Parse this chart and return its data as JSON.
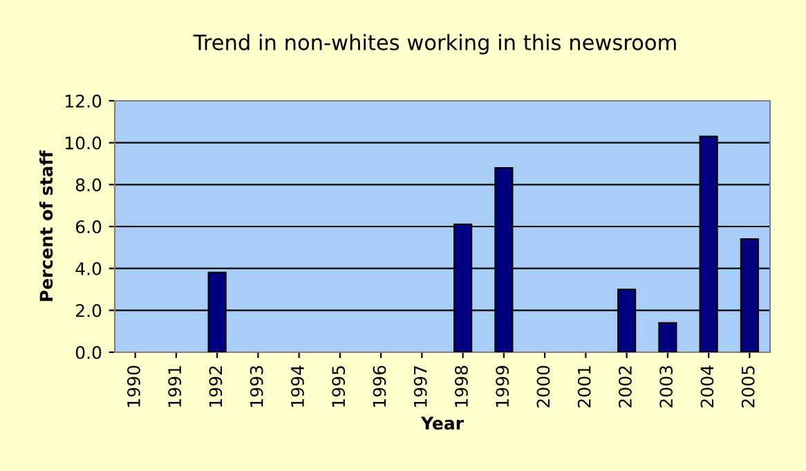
{
  "chart_data": {
    "type": "bar",
    "title": "Trend in non-whites working in this newsroom",
    "xlabel": "Year",
    "ylabel": "Percent of staff",
    "categories": [
      "1990",
      "1991",
      "1992",
      "1993",
      "1994",
      "1995",
      "1996",
      "1997",
      "1998",
      "1999",
      "2000",
      "2001",
      "2002",
      "2003",
      "2004",
      "2005"
    ],
    "series": [
      {
        "color": "#000080",
        "values": [
          null,
          null,
          3.8,
          null,
          null,
          null,
          null,
          null,
          6.1,
          8.8,
          null,
          null,
          3.0,
          1.4,
          10.3,
          5.4
        ]
      }
    ],
    "ylim": [
      0,
      12
    ],
    "yticks": [
      {
        "value": 0,
        "label": "0.0"
      },
      {
        "value": 2,
        "label": "2.0"
      },
      {
        "value": 4,
        "label": "4.0"
      },
      {
        "value": 6,
        "label": "6.0"
      },
      {
        "value": 8,
        "label": "8.0"
      },
      {
        "value": 10,
        "label": "10.0"
      },
      {
        "value": 12,
        "label": "12.0"
      }
    ],
    "grid": "y",
    "legend": false
  }
}
